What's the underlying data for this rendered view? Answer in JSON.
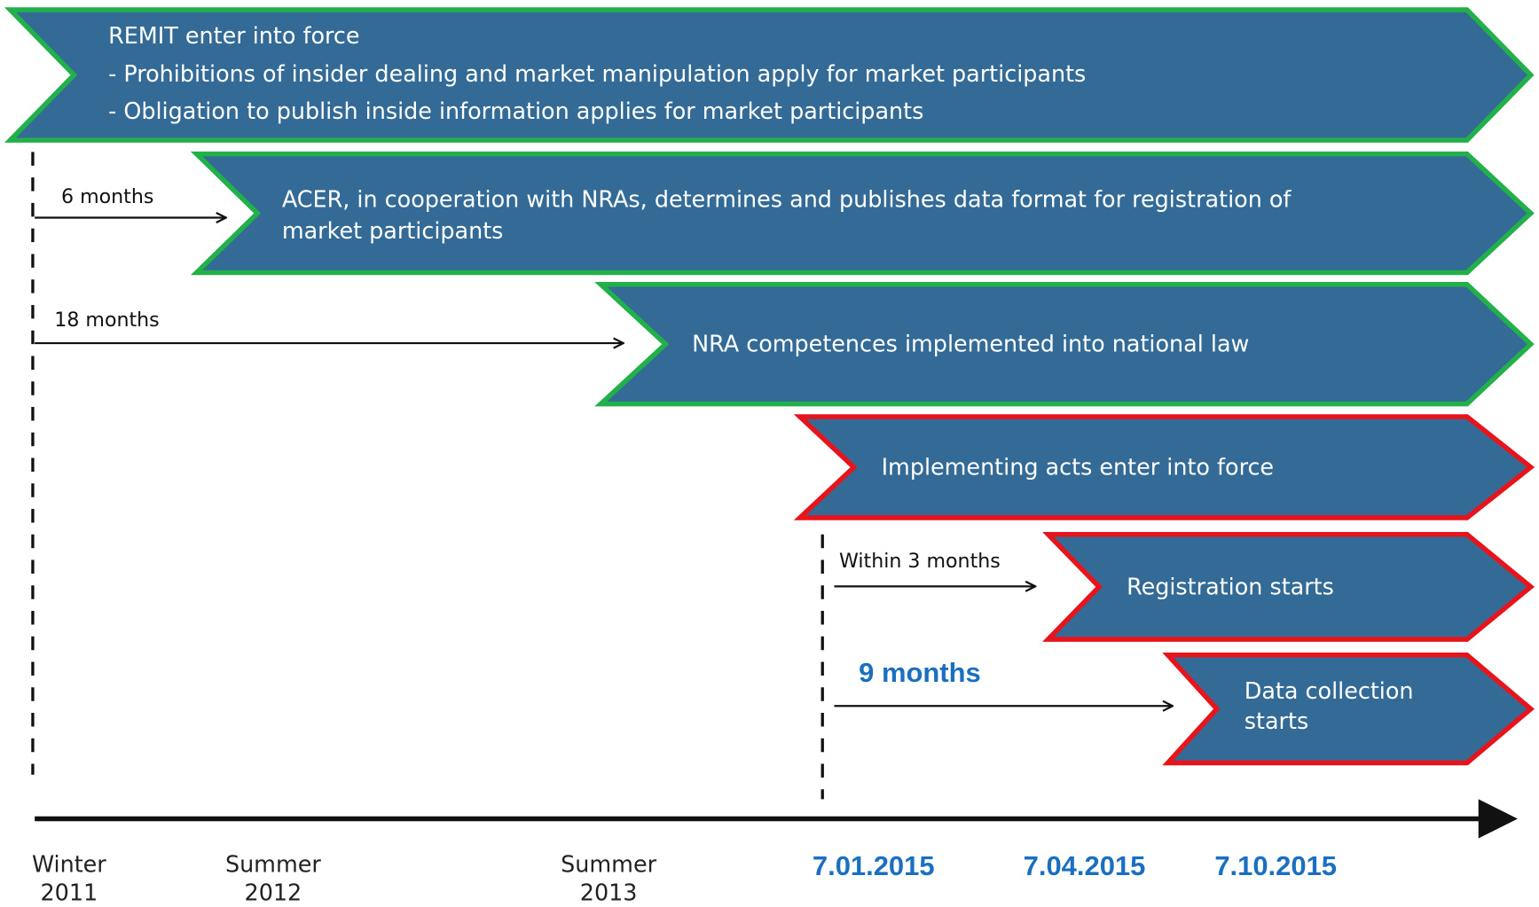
{
  "banners": [
    {
      "lines": [
        "REMIT enter into force",
        "- Prohibitions of insider dealing and market manipulation apply for market participants",
        "- Obligation to publish inside information applies for market participants"
      ]
    },
    {
      "lines": [
        "ACER, in cooperation with NRAs, determines and publishes data format for registration of",
        "market participants"
      ]
    },
    {
      "lines": [
        "NRA competences implemented into national law"
      ]
    },
    {
      "lines": [
        "Implementing acts enter into force"
      ]
    },
    {
      "lines": [
        "Registration starts"
      ]
    },
    {
      "lines": [
        "Data collection",
        "starts"
      ]
    }
  ],
  "arrows": [
    {
      "label": "6 months"
    },
    {
      "label": "18 months"
    },
    {
      "label": "Within 3 months"
    },
    {
      "label": "9 months"
    }
  ],
  "timeline": [
    {
      "lines": [
        "Winter",
        "2011"
      ]
    },
    {
      "lines": [
        "Summer",
        "2012"
      ]
    },
    {
      "lines": [
        "Summer",
        "2013"
      ]
    },
    {
      "lines": [
        "7.01.2015"
      ]
    },
    {
      "lines": [
        "7.04.2015"
      ]
    },
    {
      "lines": [
        "7.10.2015"
      ]
    }
  ]
}
